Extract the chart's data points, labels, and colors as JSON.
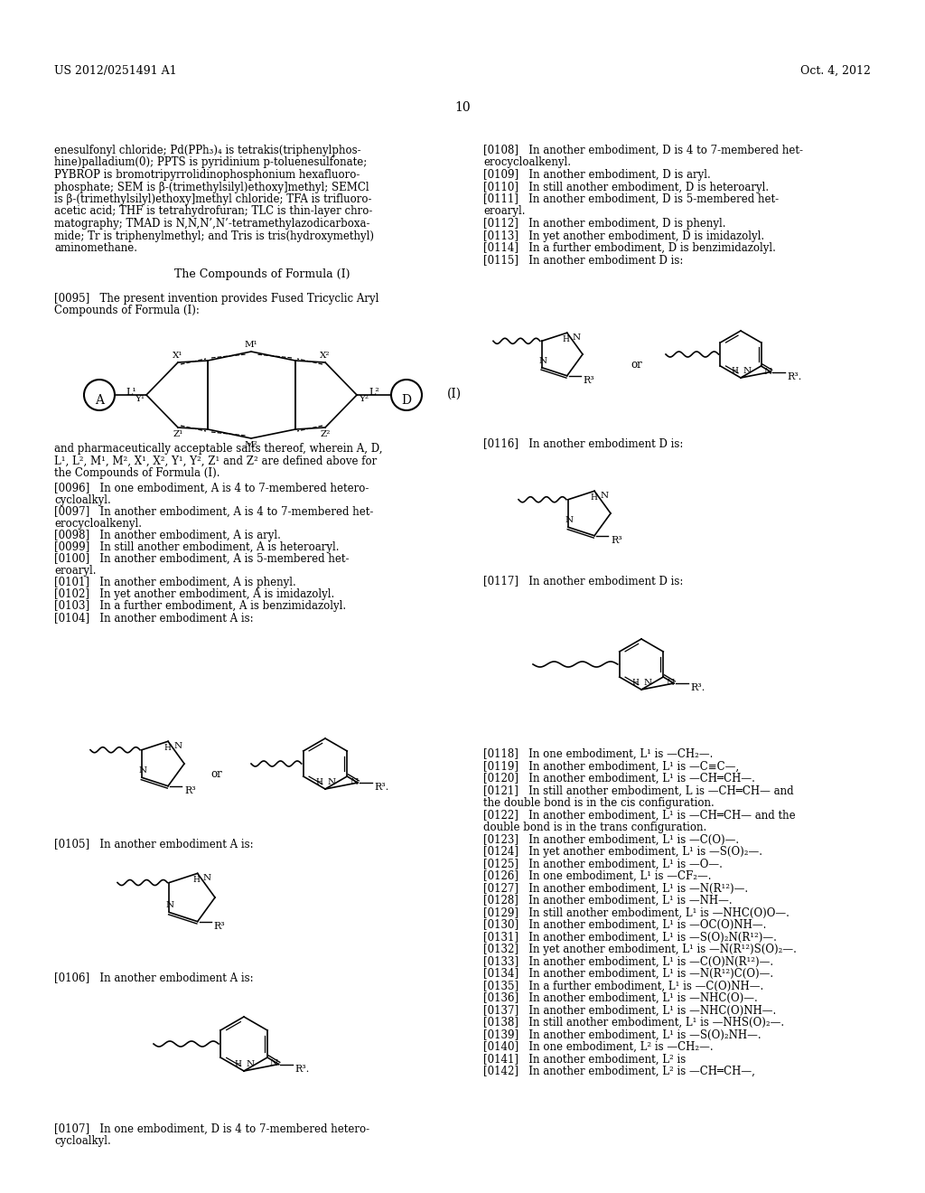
{
  "header_left": "US 2012/0251491 A1",
  "header_right": "Oct. 4, 2012",
  "page_number": "10",
  "background_color": "#ffffff",
  "text_color": "#000000"
}
